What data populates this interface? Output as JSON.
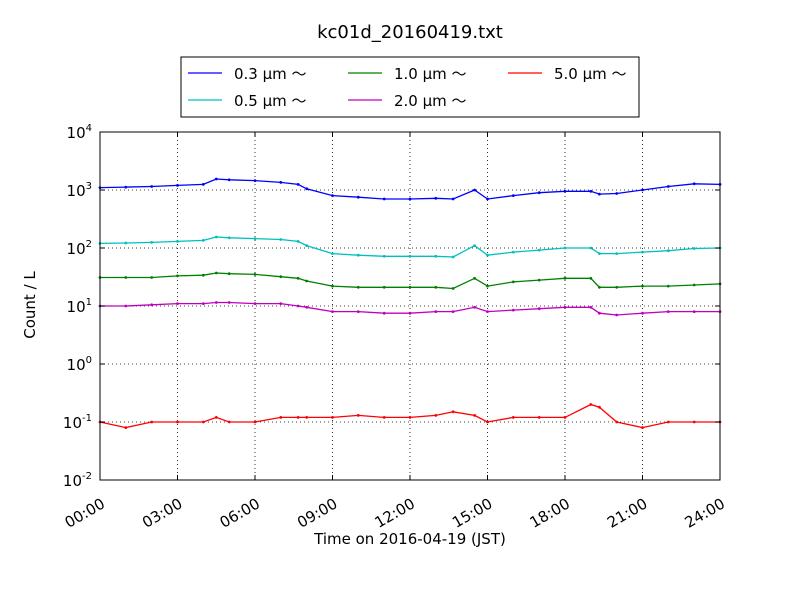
{
  "chart_data": {
    "type": "line",
    "title": "kc01d_20160419.txt",
    "xlabel": "Time on 2016-04-19 (JST)",
    "ylabel": "Count / L",
    "yscale": "log",
    "ylim": [
      0.01,
      10000
    ],
    "xlim": [
      "2016-04-19 00:00",
      "2016-04-20 00:00"
    ],
    "grid": true,
    "legend_position": "top-center",
    "x_ticks": [
      "00:00",
      "03:00",
      "06:00",
      "09:00",
      "12:00",
      "15:00",
      "18:00",
      "21:00",
      "24:00"
    ],
    "y_ticks": [
      {
        "value": 0.01,
        "base": "10",
        "exp": "-2"
      },
      {
        "value": 0.1,
        "base": "10",
        "exp": "-1"
      },
      {
        "value": 1,
        "base": "10",
        "exp": "0"
      },
      {
        "value": 10,
        "base": "10",
        "exp": "1"
      },
      {
        "value": 100,
        "base": "10",
        "exp": "2"
      },
      {
        "value": 1000,
        "base": "10",
        "exp": "3"
      },
      {
        "value": 10000,
        "base": "10",
        "exp": "4"
      }
    ],
    "x": [
      "00:00",
      "01:00",
      "02:00",
      "03:00",
      "04:00",
      "04:30",
      "05:00",
      "06:00",
      "07:00",
      "07:40",
      "08:00",
      "09:00",
      "10:00",
      "11:00",
      "12:00",
      "13:00",
      "13:40",
      "14:30",
      "15:00",
      "16:00",
      "17:00",
      "18:00",
      "19:00",
      "19:20",
      "20:00",
      "21:00",
      "22:00",
      "23:00",
      "24:00"
    ],
    "series": [
      {
        "name": "0.3 μm ～",
        "color": "#0000ff",
        "values": [
          1100,
          1120,
          1150,
          1200,
          1250,
          1550,
          1500,
          1450,
          1350,
          1250,
          1050,
          800,
          750,
          700,
          700,
          720,
          700,
          1000,
          700,
          800,
          900,
          950,
          950,
          850,
          870,
          1000,
          1150,
          1280,
          1250
        ]
      },
      {
        "name": "0.5 μm ～",
        "color": "#00bfbf",
        "values": [
          120,
          122,
          125,
          130,
          135,
          155,
          150,
          145,
          140,
          130,
          110,
          80,
          75,
          72,
          72,
          72,
          70,
          110,
          75,
          85,
          92,
          100,
          100,
          80,
          80,
          85,
          90,
          98,
          100
        ]
      },
      {
        "name": "1.0 μm ～",
        "color": "#008000",
        "values": [
          31,
          31,
          31,
          33,
          34,
          37,
          36,
          35,
          32,
          30,
          27,
          22,
          21,
          21,
          21,
          21,
          20,
          30,
          22,
          26,
          28,
          30,
          30,
          21,
          21,
          22,
          22,
          23,
          24
        ]
      },
      {
        "name": "2.0 μm ～",
        "color": "#bf00bf",
        "values": [
          10,
          10,
          10.5,
          11,
          11,
          11.5,
          11.5,
          11,
          11,
          10,
          9.5,
          8,
          8,
          7.5,
          7.5,
          8,
          8,
          9.5,
          8,
          8.5,
          9,
          9.5,
          9.5,
          7.5,
          7,
          7.5,
          8,
          8,
          8
        ]
      },
      {
        "name": "5.0 μm ～",
        "color": "#ff0000",
        "values": [
          0.1,
          0.08,
          0.1,
          0.1,
          0.1,
          0.12,
          0.1,
          0.1,
          0.12,
          0.12,
          0.12,
          0.12,
          0.13,
          0.12,
          0.12,
          0.13,
          0.15,
          0.13,
          0.1,
          0.12,
          0.12,
          0.12,
          0.2,
          0.18,
          0.1,
          0.08,
          0.1,
          0.1,
          0.1
        ]
      }
    ]
  }
}
